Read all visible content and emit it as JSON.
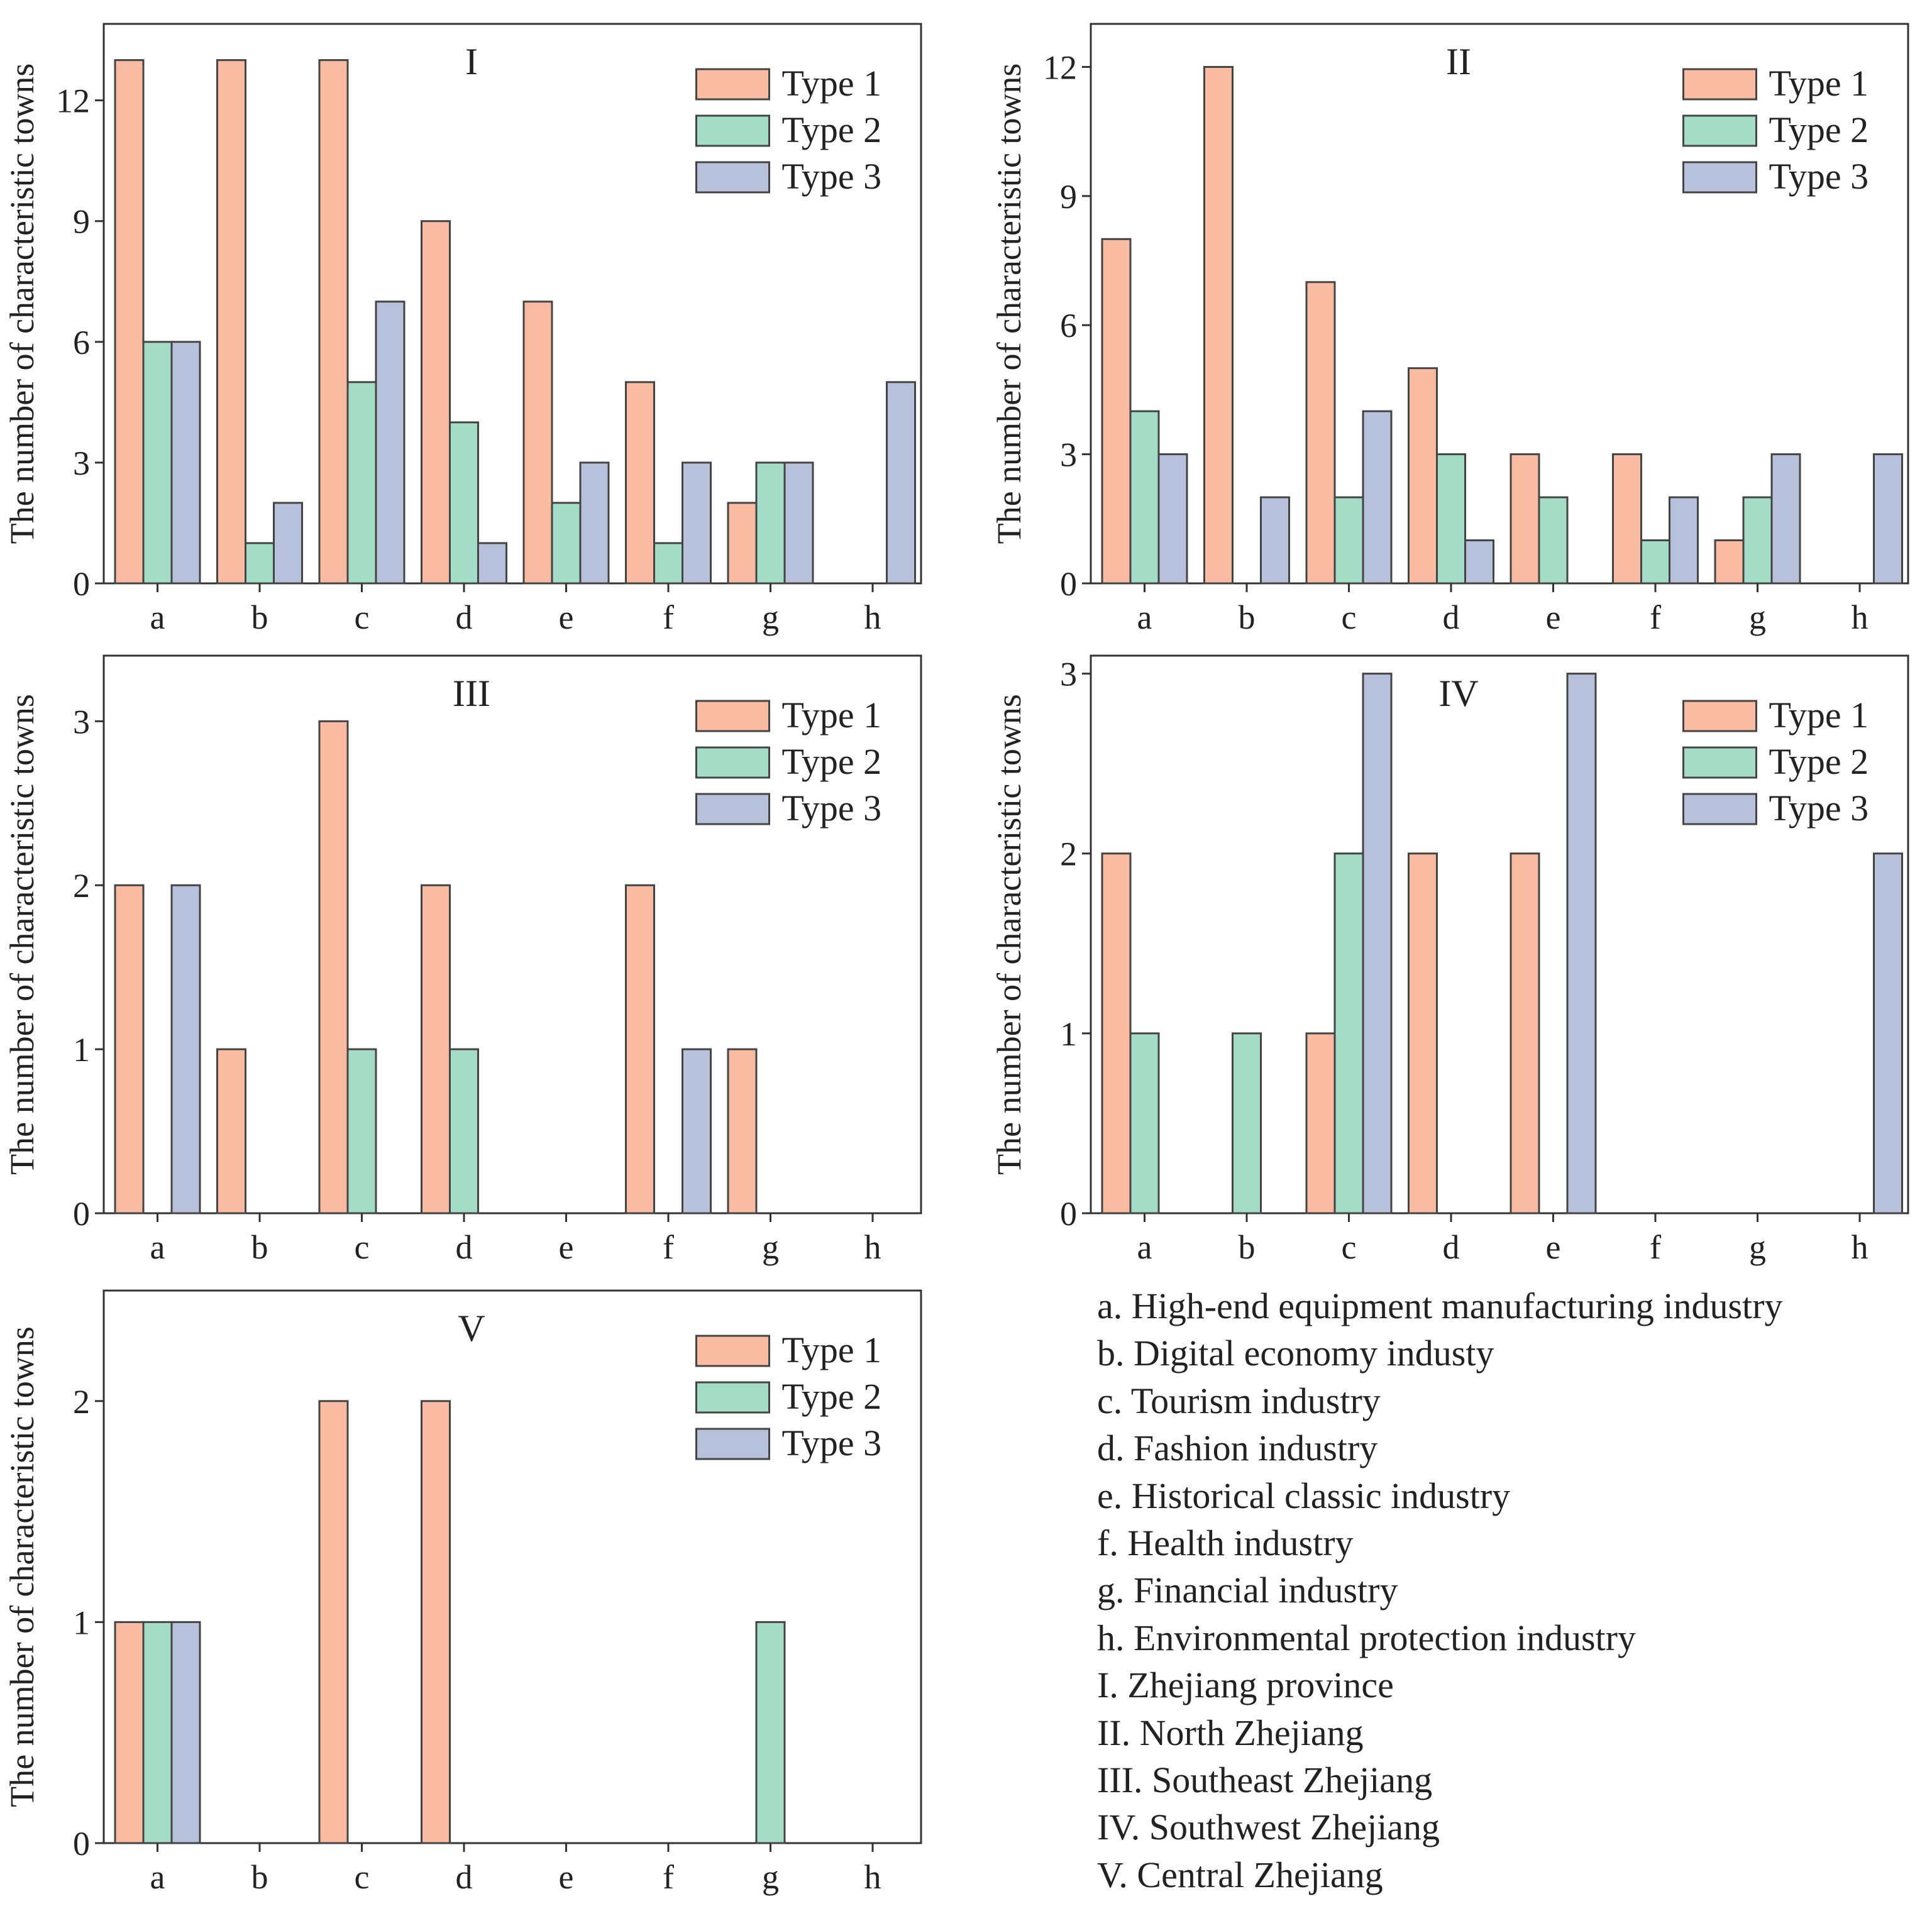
{
  "colors": {
    "type1": "#f9bba1",
    "type2": "#a4dcc7",
    "type3": "#b7c1dc",
    "axis": "#333333",
    "text": "#222222"
  },
  "chart_data": [
    {
      "type": "bar",
      "title": "I",
      "ylabel": "The number of characteristic towns",
      "xlabel": "",
      "categories": [
        "a",
        "b",
        "c",
        "d",
        "e",
        "f",
        "g",
        "h"
      ],
      "ylim": [
        0,
        13.9
      ],
      "yticks": [
        0,
        3,
        6,
        9,
        12
      ],
      "legend": "top-right",
      "series": [
        {
          "name": "Type 1",
          "values": [
            13,
            13,
            13,
            9,
            7,
            5,
            2,
            0
          ]
        },
        {
          "name": "Type 2",
          "values": [
            6,
            1,
            5,
            4,
            2,
            1,
            3,
            0
          ]
        },
        {
          "name": "Type 3",
          "values": [
            6,
            2,
            7,
            1,
            3,
            3,
            3,
            5
          ]
        }
      ]
    },
    {
      "type": "bar",
      "title": "II",
      "ylabel": "The number of characteristic towns",
      "xlabel": "",
      "categories": [
        "a",
        "b",
        "c",
        "d",
        "e",
        "f",
        "g",
        "h"
      ],
      "ylim": [
        0,
        13
      ],
      "yticks": [
        0,
        3,
        6,
        9,
        12
      ],
      "legend": "top-right",
      "series": [
        {
          "name": "Type 1",
          "values": [
            8,
            12,
            7,
            5,
            3,
            3,
            1,
            0
          ]
        },
        {
          "name": "Type 2",
          "values": [
            4,
            0,
            2,
            3,
            2,
            1,
            2,
            0
          ]
        },
        {
          "name": "Type 3",
          "values": [
            3,
            2,
            4,
            1,
            0,
            2,
            3,
            3
          ]
        }
      ]
    },
    {
      "type": "bar",
      "title": "III",
      "ylabel": "The number of characteristic towns",
      "xlabel": "",
      "categories": [
        "a",
        "b",
        "c",
        "d",
        "e",
        "f",
        "g",
        "h"
      ],
      "ylim": [
        0,
        3.4
      ],
      "yticks": [
        0,
        1,
        2,
        3
      ],
      "legend": "top-right",
      "series": [
        {
          "name": "Type 1",
          "values": [
            2,
            1,
            3,
            2,
            0,
            2,
            1,
            0
          ]
        },
        {
          "name": "Type 2",
          "values": [
            0,
            0,
            1,
            1,
            0,
            0,
            0,
            0
          ]
        },
        {
          "name": "Type 3",
          "values": [
            2,
            0,
            0,
            0,
            0,
            1,
            0,
            0
          ]
        }
      ]
    },
    {
      "type": "bar",
      "title": "IV",
      "ylabel": "The number of characteristic towns",
      "xlabel": "",
      "categories": [
        "a",
        "b",
        "c",
        "d",
        "e",
        "f",
        "g",
        "h"
      ],
      "ylim": [
        0,
        3.1
      ],
      "yticks": [
        0,
        1,
        2,
        3
      ],
      "legend": "top-right",
      "series": [
        {
          "name": "Type 1",
          "values": [
            2,
            0,
            1,
            2,
            2,
            0,
            0,
            0
          ]
        },
        {
          "name": "Type 2",
          "values": [
            1,
            1,
            2,
            0,
            0,
            0,
            0,
            0
          ]
        },
        {
          "name": "Type 3",
          "values": [
            0,
            0,
            3,
            0,
            3,
            0,
            0,
            2
          ]
        }
      ]
    },
    {
      "type": "bar",
      "title": "V",
      "ylabel": "The number of characteristic towns",
      "xlabel": "",
      "categories": [
        "a",
        "b",
        "c",
        "d",
        "e",
        "f",
        "g",
        "h"
      ],
      "ylim": [
        0,
        2.5
      ],
      "yticks": [
        0,
        1,
        2
      ],
      "legend": "top-right",
      "series": [
        {
          "name": "Type 1",
          "values": [
            1,
            0,
            2,
            2,
            0,
            0,
            0,
            0
          ]
        },
        {
          "name": "Type 2",
          "values": [
            1,
            0,
            0,
            0,
            0,
            0,
            1,
            0
          ]
        },
        {
          "name": "Type 3",
          "values": [
            1,
            0,
            0,
            0,
            0,
            0,
            0,
            0
          ]
        }
      ]
    }
  ],
  "key": [
    "a. High-end equipment manufacturing industry",
    "b. Digital economy industy",
    "c. Tourism industry",
    "d. Fashion industry",
    "e. Historical classic industry",
    "f. Health industry",
    "g. Financial industry",
    "h. Environmental protection industry",
    "I. Zhejiang province",
    "II. North Zhejiang",
    "III. Southeast Zhejiang",
    "IV. Southwest Zhejiang",
    "V. Central Zhejiang"
  ]
}
